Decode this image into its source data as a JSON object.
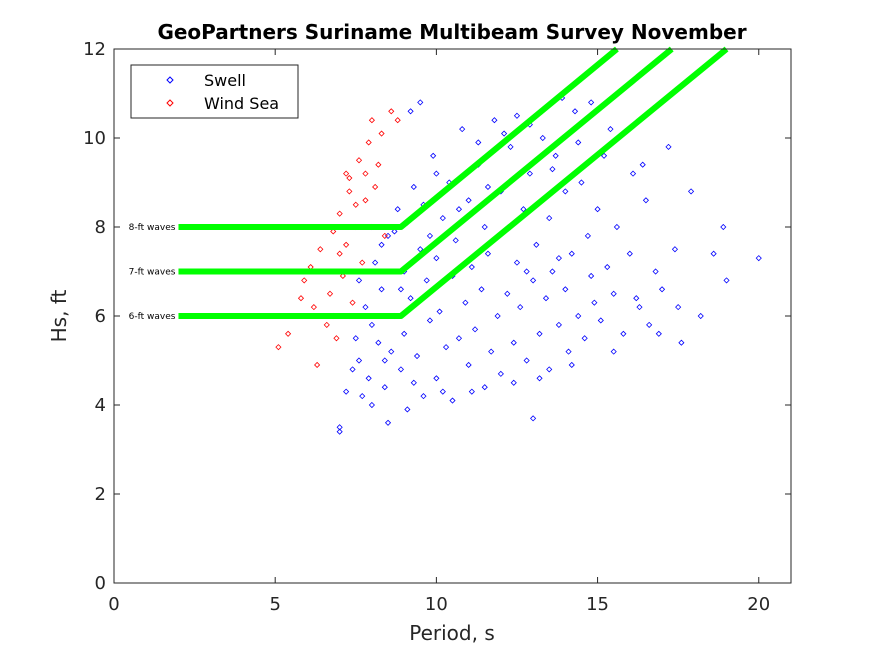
{
  "chart_data": {
    "type": "scatter",
    "title": "GeoPartners Suriname Multibeam Survey November",
    "xlabel": "Period, s",
    "ylabel": "Hs, ft",
    "xlim": [
      0,
      21
    ],
    "ylim": [
      0,
      12
    ],
    "xticks": [
      0,
      5,
      10,
      15,
      20
    ],
    "yticks": [
      0,
      2,
      4,
      6,
      8,
      10,
      12
    ],
    "grid": false,
    "legend_position": "top-left",
    "series": [
      {
        "name": "Swell",
        "color": "#0000ff",
        "marker": "diamond",
        "points": [
          [
            7.0,
            3.4
          ],
          [
            7.0,
            3.5
          ],
          [
            7.2,
            4.3
          ],
          [
            7.4,
            4.8
          ],
          [
            7.5,
            5.5
          ],
          [
            7.6,
            5.0
          ],
          [
            7.8,
            6.2
          ],
          [
            7.9,
            4.6
          ],
          [
            8.0,
            5.8
          ],
          [
            8.0,
            4.0
          ],
          [
            8.1,
            7.2
          ],
          [
            8.2,
            5.4
          ],
          [
            8.3,
            6.6
          ],
          [
            8.4,
            4.4
          ],
          [
            8.5,
            7.8
          ],
          [
            8.5,
            3.6
          ],
          [
            8.6,
            5.2
          ],
          [
            8.7,
            6.0
          ],
          [
            8.8,
            8.4
          ],
          [
            8.9,
            4.8
          ],
          [
            9.0,
            5.6
          ],
          [
            9.0,
            7.0
          ],
          [
            9.1,
            3.9
          ],
          [
            9.2,
            6.4
          ],
          [
            9.3,
            8.9
          ],
          [
            9.4,
            5.1
          ],
          [
            9.5,
            7.5
          ],
          [
            9.5,
            10.8
          ],
          [
            9.6,
            4.2
          ],
          [
            9.7,
            6.8
          ],
          [
            9.8,
            5.9
          ],
          [
            9.9,
            9.6
          ],
          [
            10.0,
            4.6
          ],
          [
            10.0,
            7.3
          ],
          [
            10.1,
            6.1
          ],
          [
            10.2,
            8.2
          ],
          [
            10.3,
            5.3
          ],
          [
            10.4,
            9.0
          ],
          [
            10.5,
            4.1
          ],
          [
            10.5,
            6.9
          ],
          [
            10.6,
            7.7
          ],
          [
            10.7,
            5.5
          ],
          [
            10.8,
            10.2
          ],
          [
            10.9,
            6.3
          ],
          [
            11.0,
            4.9
          ],
          [
            11.0,
            8.6
          ],
          [
            11.1,
            7.1
          ],
          [
            11.2,
            5.7
          ],
          [
            11.3,
            9.4
          ],
          [
            11.4,
            6.6
          ],
          [
            11.5,
            4.4
          ],
          [
            11.5,
            8.0
          ],
          [
            11.6,
            7.4
          ],
          [
            11.7,
            5.2
          ],
          [
            11.8,
            10.4
          ],
          [
            11.9,
            6.0
          ],
          [
            12.0,
            8.8
          ],
          [
            12.0,
            4.7
          ],
          [
            12.1,
            7.9
          ],
          [
            12.2,
            6.5
          ],
          [
            12.3,
            9.8
          ],
          [
            12.4,
            5.4
          ],
          [
            12.5,
            7.2
          ],
          [
            12.5,
            10.5
          ],
          [
            12.6,
            6.2
          ],
          [
            12.7,
            8.4
          ],
          [
            12.8,
            5.0
          ],
          [
            12.9,
            9.2
          ],
          [
            13.0,
            6.8
          ],
          [
            13.0,
            3.7
          ],
          [
            13.1,
            7.6
          ],
          [
            13.2,
            5.6
          ],
          [
            13.3,
            10.0
          ],
          [
            13.4,
            6.4
          ],
          [
            13.5,
            8.2
          ],
          [
            13.5,
            4.8
          ],
          [
            13.6,
            7.0
          ],
          [
            13.7,
            9.6
          ],
          [
            13.8,
            5.8
          ],
          [
            13.9,
            10.9
          ],
          [
            14.0,
            6.6
          ],
          [
            14.0,
            8.8
          ],
          [
            14.1,
            5.2
          ],
          [
            14.2,
            7.4
          ],
          [
            14.3,
            10.6
          ],
          [
            14.4,
            6.0
          ],
          [
            14.5,
            9.0
          ],
          [
            14.6,
            5.5
          ],
          [
            14.7,
            7.8
          ],
          [
            14.8,
            10.8
          ],
          [
            14.9,
            6.3
          ],
          [
            15.0,
            8.4
          ],
          [
            15.1,
            5.9
          ],
          [
            15.2,
            9.6
          ],
          [
            15.3,
            7.1
          ],
          [
            15.5,
            6.5
          ],
          [
            15.6,
            8.0
          ],
          [
            15.8,
            5.6
          ],
          [
            16.0,
            7.4
          ],
          [
            16.1,
            9.2
          ],
          [
            16.3,
            6.2
          ],
          [
            16.5,
            8.6
          ],
          [
            16.6,
            5.8
          ],
          [
            16.8,
            7.0
          ],
          [
            17.0,
            6.6
          ],
          [
            17.2,
            9.8
          ],
          [
            17.4,
            7.5
          ],
          [
            17.6,
            5.4
          ],
          [
            17.9,
            8.8
          ],
          [
            18.2,
            6.0
          ],
          [
            18.6,
            7.4
          ],
          [
            18.9,
            8.0
          ],
          [
            19.0,
            6.8
          ],
          [
            20.0,
            7.3
          ],
          [
            8.3,
            7.6
          ],
          [
            8.7,
            7.9
          ],
          [
            9.1,
            8.1
          ],
          [
            9.6,
            8.5
          ],
          [
            10.4,
            8.9
          ],
          [
            11.3,
            9.9
          ],
          [
            12.1,
            10.1
          ],
          [
            12.9,
            10.3
          ],
          [
            13.6,
            9.3
          ],
          [
            14.4,
            9.9
          ],
          [
            15.4,
            10.2
          ],
          [
            16.4,
            9.4
          ],
          [
            7.3,
            6.0
          ],
          [
            7.6,
            6.8
          ],
          [
            7.7,
            4.2
          ],
          [
            8.0,
            8.0
          ],
          [
            8.4,
            5.0
          ],
          [
            8.9,
            6.6
          ],
          [
            9.3,
            4.5
          ],
          [
            9.8,
            7.8
          ],
          [
            10.2,
            4.3
          ],
          [
            10.7,
            8.4
          ],
          [
            11.1,
            4.3
          ],
          [
            11.6,
            8.9
          ],
          [
            12.4,
            4.5
          ],
          [
            12.8,
            7.0
          ],
          [
            13.2,
            4.6
          ],
          [
            13.8,
            7.3
          ],
          [
            14.2,
            4.9
          ],
          [
            14.8,
            6.9
          ],
          [
            15.5,
            5.2
          ],
          [
            16.2,
            6.4
          ],
          [
            16.9,
            5.6
          ],
          [
            17.5,
            6.2
          ],
          [
            9.2,
            10.6
          ],
          [
            10.0,
            9.2
          ]
        ]
      },
      {
        "name": "Wind Sea",
        "color": "#ff0000",
        "marker": "diamond",
        "points": [
          [
            5.1,
            5.3
          ],
          [
            5.4,
            5.6
          ],
          [
            5.8,
            6.4
          ],
          [
            5.9,
            6.8
          ],
          [
            6.1,
            7.1
          ],
          [
            6.2,
            6.2
          ],
          [
            6.3,
            4.9
          ],
          [
            6.4,
            7.5
          ],
          [
            6.6,
            5.8
          ],
          [
            6.7,
            6.5
          ],
          [
            6.8,
            7.9
          ],
          [
            6.9,
            5.5
          ],
          [
            7.0,
            8.3
          ],
          [
            7.1,
            6.9
          ],
          [
            7.2,
            7.6
          ],
          [
            7.3,
            8.8
          ],
          [
            7.3,
            9.1
          ],
          [
            7.4,
            6.3
          ],
          [
            7.5,
            8.0
          ],
          [
            7.6,
            9.5
          ],
          [
            7.7,
            7.2
          ],
          [
            7.8,
            8.6
          ],
          [
            7.9,
            9.9
          ],
          [
            8.0,
            10.4
          ],
          [
            8.1,
            8.9
          ],
          [
            8.2,
            9.4
          ],
          [
            8.3,
            10.1
          ],
          [
            8.4,
            7.8
          ],
          [
            8.6,
            10.6
          ],
          [
            8.8,
            10.4
          ],
          [
            7.2,
            9.2
          ],
          [
            7.5,
            8.5
          ],
          [
            7.0,
            7.4
          ],
          [
            6.8,
            6.0
          ],
          [
            7.8,
            9.2
          ]
        ]
      }
    ],
    "reference_lines": [
      {
        "label": "6-ft waves",
        "points": [
          [
            2,
            6
          ],
          [
            8.9,
            6
          ],
          [
            19,
            12
          ]
        ],
        "color": "#00ff00"
      },
      {
        "label": "7-ft waves",
        "points": [
          [
            2,
            7
          ],
          [
            8.9,
            7
          ],
          [
            17.3,
            12
          ]
        ],
        "color": "#00ff00"
      },
      {
        "label": "8-ft waves",
        "points": [
          [
            2,
            8
          ],
          [
            8.9,
            8
          ],
          [
            15.6,
            12
          ]
        ],
        "color": "#00ff00"
      }
    ]
  }
}
